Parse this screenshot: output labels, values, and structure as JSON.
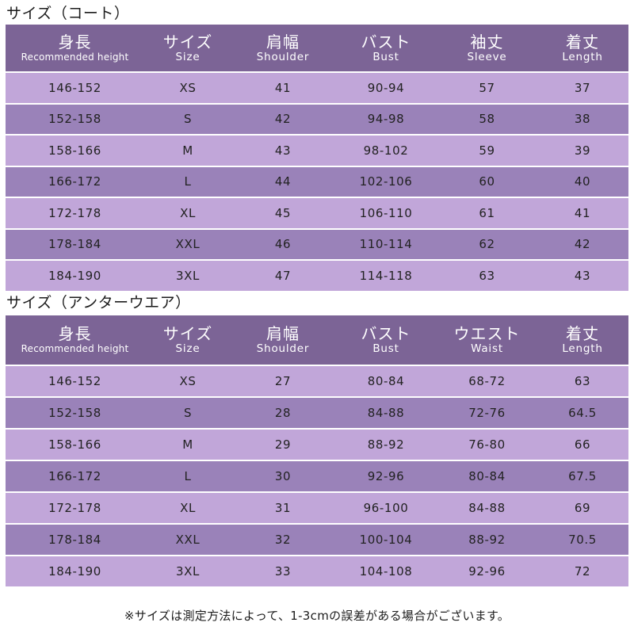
{
  "coat": {
    "title": "サイズ（コート）",
    "headers": [
      {
        "jp": "身長",
        "en": "Recommended height"
      },
      {
        "jp": "サイズ",
        "en": "Size"
      },
      {
        "jp": "肩幅",
        "en": "Shoulder"
      },
      {
        "jp": "バスト",
        "en": "Bust"
      },
      {
        "jp": "袖丈",
        "en": "Sleeve"
      },
      {
        "jp": "着丈",
        "en": "Length"
      }
    ],
    "rows": [
      [
        "146-152",
        "XS",
        "41",
        "90-94",
        "57",
        "37"
      ],
      [
        "152-158",
        "S",
        "42",
        "94-98",
        "58",
        "38"
      ],
      [
        "158-166",
        "M",
        "43",
        "98-102",
        "59",
        "39"
      ],
      [
        "166-172",
        "L",
        "44",
        "102-106",
        "60",
        "40"
      ],
      [
        "172-178",
        "XL",
        "45",
        "106-110",
        "61",
        "41"
      ],
      [
        "178-184",
        "XXL",
        "46",
        "110-114",
        "62",
        "42"
      ],
      [
        "184-190",
        "3XL",
        "47",
        "114-118",
        "63",
        "43"
      ]
    ]
  },
  "underwear": {
    "title": "サイズ（アンターウエア）",
    "headers": [
      {
        "jp": "身長",
        "en": "Recommended height"
      },
      {
        "jp": "サイズ",
        "en": "Size"
      },
      {
        "jp": "肩幅",
        "en": "Shoulder"
      },
      {
        "jp": "バスト",
        "en": "Bust"
      },
      {
        "jp": "ウエスト",
        "en": "Waist"
      },
      {
        "jp": "着丈",
        "en": "Length"
      }
    ],
    "rows": [
      [
        "146-152",
        "XS",
        "27",
        "80-84",
        "68-72",
        "63"
      ],
      [
        "152-158",
        "S",
        "28",
        "84-88",
        "72-76",
        "64.5"
      ],
      [
        "158-166",
        "M",
        "29",
        "88-92",
        "76-80",
        "66"
      ],
      [
        "166-172",
        "L",
        "30",
        "92-96",
        "80-84",
        "67.5"
      ],
      [
        "172-178",
        "XL",
        "31",
        "96-100",
        "84-88",
        "69"
      ],
      [
        "178-184",
        "XXL",
        "32",
        "100-104",
        "88-92",
        "70.5"
      ],
      [
        "184-190",
        "3XL",
        "33",
        "104-108",
        "92-96",
        "72"
      ]
    ]
  },
  "footnote": "※サイズは測定方法によって、1-3cmの誤差がある場合がございます。",
  "colors": {
    "header_bg": "#7c6496",
    "row_dark": "#9a82b9",
    "row_light": "#c1a6d9"
  }
}
